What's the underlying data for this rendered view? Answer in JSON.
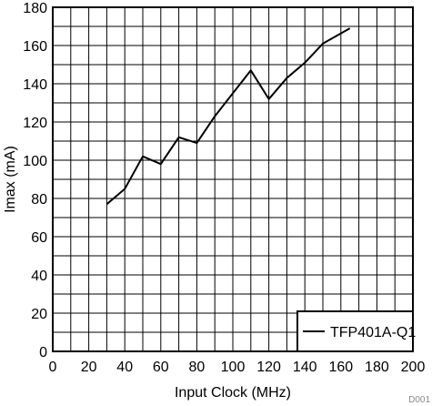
{
  "chart_data": {
    "type": "line",
    "xlabel": "Input Clock (MHz)",
    "ylabel": "Imax (mA)",
    "xlim": [
      0,
      200
    ],
    "ylim": [
      0,
      180
    ],
    "xticks": [
      0,
      20,
      40,
      60,
      80,
      100,
      120,
      140,
      160,
      180,
      200
    ],
    "yticks": [
      0,
      20,
      40,
      60,
      80,
      100,
      120,
      140,
      160,
      180
    ],
    "grid": true,
    "legend_position": "bottom-right",
    "series": [
      {
        "name": "TFP401A-Q1",
        "color": "#000000",
        "x": [
          30,
          40,
          50,
          60,
          70,
          80,
          90,
          100,
          110,
          120,
          130,
          140,
          150,
          165
        ],
        "y": [
          77,
          85,
          102,
          98,
          112,
          109,
          123,
          135,
          147,
          132,
          143,
          151,
          161,
          169
        ]
      }
    ],
    "figure_id": "D001"
  }
}
